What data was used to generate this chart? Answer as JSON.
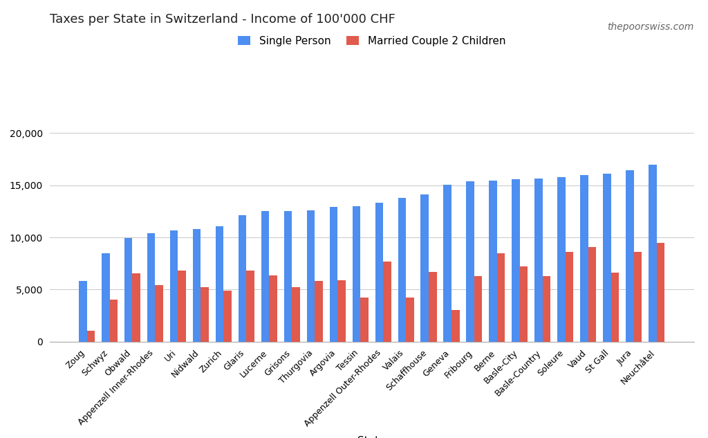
{
  "title": "Taxes per State in Switzerland - Income of 100'000 CHF",
  "watermark": "thepoorswiss.com",
  "xlabel": "State",
  "ylabel": "",
  "legend_labels": [
    "Single Person",
    "Married Couple 2 Children"
  ],
  "bar_color_single": "#4d8ef0",
  "bar_color_married": "#e05a4e",
  "ylim": [
    0,
    21000
  ],
  "yticks": [
    0,
    5000,
    10000,
    15000,
    20000
  ],
  "ytick_labels": [
    "0",
    "5,000",
    "10,000",
    "15,000",
    "20,000"
  ],
  "background_color": "#ffffff",
  "cantons": [
    "Zoug",
    "Schwyz",
    "Obwald",
    "Appenzell Inner-Rhodes",
    "Uri",
    "Nidwald",
    "Zurich",
    "Glaris",
    "Lucerne",
    "Grisons",
    "Thurgovia",
    "Argovia",
    "Tessin",
    "Appenzell Outer-Rhodes",
    "Valais",
    "Schaffhouse",
    "Geneva",
    "Fribourg",
    "Berne",
    "Basle-City",
    "Basle-Country",
    "Soleure",
    "Vaud",
    "St Gall",
    "Jura",
    "Neuchâtel"
  ],
  "single": [
    5800,
    8500,
    9950,
    10400,
    10650,
    10800,
    11050,
    12100,
    12500,
    12500,
    12600,
    12900,
    13000,
    13300,
    13800,
    14100,
    15050,
    15400,
    15450,
    15550,
    15650,
    15750,
    15950,
    16100,
    16450,
    17000
  ],
  "married": [
    1050,
    4000,
    6550,
    5400,
    6800,
    5250,
    4900,
    6850,
    6350,
    5250,
    5850,
    5900,
    4250,
    7700,
    4250,
    6700,
    3050,
    6300,
    8500,
    7200,
    6300,
    8600,
    9100,
    6600,
    8600,
    9500
  ]
}
